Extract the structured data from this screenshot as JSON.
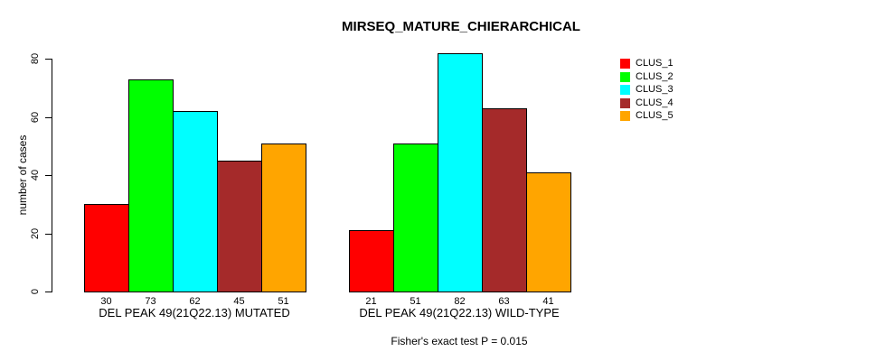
{
  "title": "MIRSEQ_MATURE_CHIERARCHICAL",
  "footer": "Fisher's exact test P = 0.015",
  "colors": {
    "background": "#ffffff",
    "axis": "#000000",
    "bar_border": "#000000"
  },
  "chart_data": {
    "type": "bar",
    "title": "MIRSEQ_MATURE_CHIERARCHICAL",
    "xlabel": "",
    "ylabel": "number of cases",
    "ylim": [
      0,
      80
    ],
    "yticks": [
      0,
      20,
      40,
      60,
      80
    ],
    "grid": false,
    "legend_position": "right",
    "bar_value_labels": true,
    "categories": [
      "DEL PEAK 49(21Q22.13) MUTATED",
      "DEL PEAK 49(21Q22.13) WILD-TYPE"
    ],
    "series": [
      {
        "name": "CLUS_1",
        "color": "#ff0000",
        "values": [
          30,
          21
        ]
      },
      {
        "name": "CLUS_2",
        "color": "#00ff00",
        "values": [
          73,
          51
        ]
      },
      {
        "name": "CLUS_3",
        "color": "#00ffff",
        "values": [
          62,
          82
        ]
      },
      {
        "name": "CLUS_4",
        "color": "#a52a2a",
        "values": [
          45,
          63
        ]
      },
      {
        "name": "CLUS_5",
        "color": "#ffa500",
        "values": [
          51,
          41
        ]
      }
    ],
    "annotation": "Fisher's exact test P = 0.015"
  }
}
